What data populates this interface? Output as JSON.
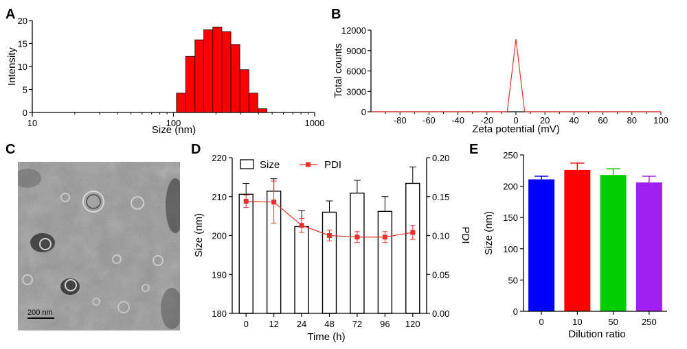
{
  "panels": {
    "A": {
      "label": "A"
    },
    "B": {
      "label": "B"
    },
    "C": {
      "label": "C",
      "scale_bar": "200 nm"
    },
    "D": {
      "label": "D"
    },
    "E": {
      "label": "E"
    }
  },
  "colors": {
    "bar_red": "#ff0000",
    "line_red": "#e8302a",
    "blue": "#0000ff",
    "red": "#ff0000",
    "green": "#00cc00",
    "purple": "#a020f0"
  },
  "chart_data": [
    {
      "panel": "A",
      "type": "bar",
      "xscale": "log",
      "xlim": [
        10,
        1000
      ],
      "ylim": [
        0,
        20
      ],
      "xlabel": "Size (nm)",
      "ylabel": "Intensity",
      "xticks": [
        "10",
        "100",
        "1000"
      ],
      "yticks": [
        "0",
        "5",
        "10",
        "15",
        "20"
      ],
      "bins": [
        {
          "from": 105,
          "to": 122,
          "value": 4.2
        },
        {
          "from": 122,
          "to": 142,
          "value": 12.2
        },
        {
          "from": 142,
          "to": 164,
          "value": 15.8
        },
        {
          "from": 164,
          "to": 190,
          "value": 18.0
        },
        {
          "from": 190,
          "to": 220,
          "value": 18.6
        },
        {
          "from": 220,
          "to": 255,
          "value": 17.6
        },
        {
          "from": 255,
          "to": 295,
          "value": 14.8
        },
        {
          "from": 295,
          "to": 342,
          "value": 9.3
        },
        {
          "from": 342,
          "to": 396,
          "value": 4.2
        },
        {
          "from": 396,
          "to": 459,
          "value": 0.8
        }
      ]
    },
    {
      "panel": "B",
      "type": "line",
      "xlim": [
        -100,
        100
      ],
      "ylim": [
        0,
        12000
      ],
      "xlabel": "Zeta potential (mV)",
      "ylabel": "Total counts",
      "xticks": [
        "-80",
        "-60",
        "-40",
        "-20",
        "0",
        "20",
        "40",
        "60",
        "80",
        "100"
      ],
      "yticks": [
        "0",
        "3000",
        "6000",
        "9000",
        "12000"
      ],
      "x": [
        -100,
        -6,
        0,
        6,
        100
      ],
      "y": [
        0,
        0,
        10700,
        0,
        0
      ]
    },
    {
      "panel": "D",
      "type": "bar",
      "categories": [
        "0",
        "12",
        "24",
        "48",
        "72",
        "96",
        "120"
      ],
      "xlabel": "Time (h)",
      "ylabel": "Size (nm)",
      "y2label": "PDI",
      "ylim": [
        180,
        220
      ],
      "y2lim": [
        0,
        0.2
      ],
      "yticks": [
        "180",
        "190",
        "200",
        "210",
        "220"
      ],
      "y2ticks": [
        "0.00",
        "0.05",
        "0.10",
        "0.15",
        "0.20"
      ],
      "series": [
        {
          "name": "Size",
          "values": [
            210.6,
            211.4,
            202.3,
            206.0,
            210.9,
            206.2,
            213.4
          ],
          "errors": [
            2.8,
            3.2,
            4.1,
            2.9,
            3.3,
            3.8,
            4.2
          ]
        },
        {
          "name": "PDI",
          "values": [
            0.144,
            0.143,
            0.113,
            0.1,
            0.098,
            0.098,
            0.104
          ],
          "errors": [
            0.008,
            0.027,
            0.009,
            0.007,
            0.007,
            0.007,
            0.009
          ]
        }
      ]
    },
    {
      "panel": "E",
      "type": "bar",
      "categories": [
        "0",
        "10",
        "50",
        "250"
      ],
      "xlabel": "Dilution ratio",
      "ylabel": "Size (nm)",
      "ylim": [
        0,
        250
      ],
      "yticks": [
        "0",
        "50",
        "100",
        "150",
        "200",
        "250"
      ],
      "values": [
        211,
        226,
        218,
        206
      ],
      "errors": [
        5,
        11,
        10,
        10
      ]
    }
  ]
}
